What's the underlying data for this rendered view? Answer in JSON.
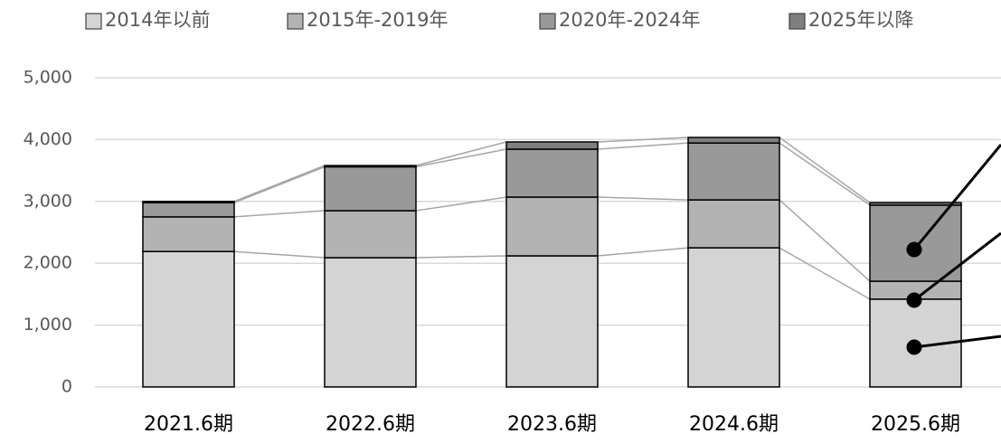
{
  "chart_data": {
    "type": "stacked_bar",
    "categories": [
      "2021.6期",
      "2022.6期",
      "2023.6期",
      "2024.6期",
      "2025.6期"
    ],
    "series": [
      {
        "name": "2014年以前",
        "color": "#d4d4d4",
        "values": [
          2190,
          2090,
          2120,
          2250,
          1420
        ]
      },
      {
        "name": "2015年-2019年",
        "color": "#b3b3b3",
        "values": [
          560,
          760,
          950,
          775,
          290
        ]
      },
      {
        "name": "2020年-2024年",
        "color": "#999999",
        "values": [
          230,
          710,
          775,
          920,
          1230
        ]
      },
      {
        "name": "2025年以降",
        "color": "#7f7f7f",
        "values": [
          20,
          20,
          117,
          90,
          40
        ]
      }
    ],
    "ylim": [
      0,
      5000
    ],
    "yticks": [
      0,
      {
        "value": 1000,
        "label": "1,000"
      },
      {
        "value": 2000,
        "label": "2,000"
      },
      {
        "value": 3000,
        "label": "3,000"
      },
      {
        "value": 4000,
        "label": "4,000"
      },
      {
        "value": 5000,
        "label": "5,000"
      }
    ],
    "grid": true,
    "legend": "top"
  }
}
